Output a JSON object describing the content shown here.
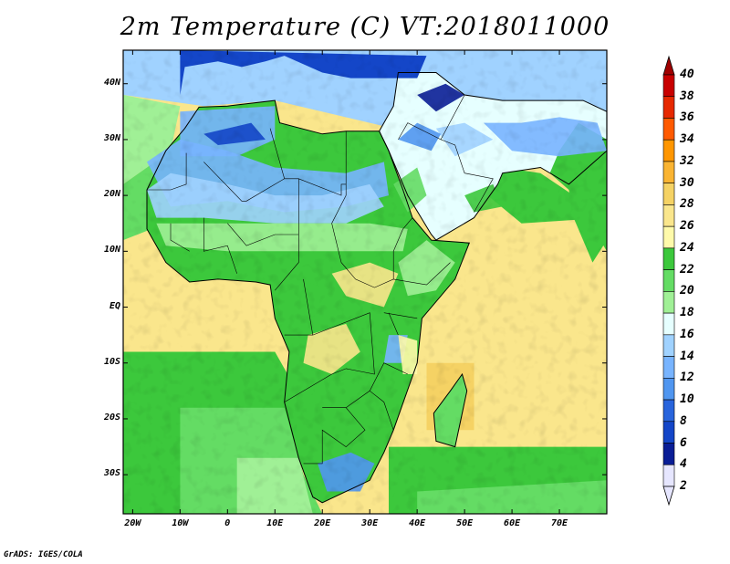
{
  "title": "2m Temperature (C) VT:2018011000",
  "footer": "GrADS: IGES/COLA",
  "map": {
    "lat_range": [
      -37,
      46
    ],
    "lon_range": [
      -22,
      80
    ],
    "lat_labels": [
      {
        "value": 40,
        "label": "40N"
      },
      {
        "value": 30,
        "label": "30N"
      },
      {
        "value": 20,
        "label": "20N"
      },
      {
        "value": 10,
        "label": "10N"
      },
      {
        "value": 0,
        "label": "EQ"
      },
      {
        "value": -10,
        "label": "10S"
      },
      {
        "value": -20,
        "label": "20S"
      },
      {
        "value": -30,
        "label": "30S"
      }
    ],
    "lon_labels": [
      {
        "value": -20,
        "label": "20W"
      },
      {
        "value": -10,
        "label": "10W"
      },
      {
        "value": 0,
        "label": "0"
      },
      {
        "value": 10,
        "label": "10E"
      },
      {
        "value": 20,
        "label": "20E"
      },
      {
        "value": 30,
        "label": "30E"
      },
      {
        "value": 40,
        "label": "40E"
      },
      {
        "value": 50,
        "label": "50E"
      },
      {
        "value": 60,
        "label": "60E"
      },
      {
        "value": 70,
        "label": "70E"
      }
    ]
  },
  "colorbar": {
    "levels": [
      "40",
      "38",
      "36",
      "34",
      "32",
      "30",
      "28",
      "26",
      "24",
      "22",
      "20",
      "18",
      "16",
      "14",
      "12",
      "10",
      "8",
      "6",
      "4",
      "2"
    ],
    "colors": [
      "#a00000",
      "#c80000",
      "#e62800",
      "#ff5a00",
      "#ff9600",
      "#fab432",
      "#f5d264",
      "#fae68c",
      "#fffaaa",
      "#3cc83c",
      "#64dc64",
      "#a0f096",
      "#e6ffff",
      "#a0d2ff",
      "#78b4ff",
      "#5096f0",
      "#2864dc",
      "#1446c8",
      "#0a1e96",
      "#e6e6ff"
    ]
  }
}
